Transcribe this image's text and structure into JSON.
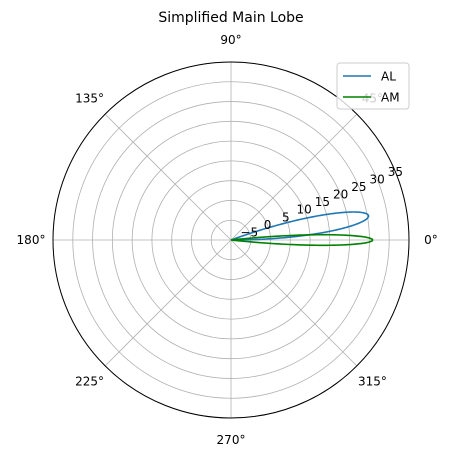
{
  "chart_data": {
    "type": "polar-line",
    "title": "Simplified Main Lobe",
    "theta_tick_labels": [
      "0°",
      "45°",
      "90°",
      "135°",
      "180°",
      "225°",
      "270°",
      "315°"
    ],
    "theta_ticks_deg": [
      0,
      45,
      90,
      135,
      180,
      225,
      270,
      315
    ],
    "r_tick_labels": [
      "−5",
      "0",
      "5",
      "10",
      "15",
      "20",
      "25",
      "30",
      "35"
    ],
    "r_ticks": [
      -5,
      0,
      5,
      10,
      15,
      20,
      25,
      30,
      35
    ],
    "r_range": [
      -10,
      35
    ],
    "grid": true,
    "legend_position": "top-right",
    "series": [
      {
        "name": "AL",
        "color": "#1f77b4",
        "lobe": {
          "center_deg": 10,
          "half_width_deg": 10,
          "peak": 25.3
        }
      },
      {
        "name": "AM",
        "color": "#008000",
        "lobe": {
          "center_deg": 0,
          "half_width_deg": 6,
          "peak": 25.8
        }
      }
    ]
  }
}
